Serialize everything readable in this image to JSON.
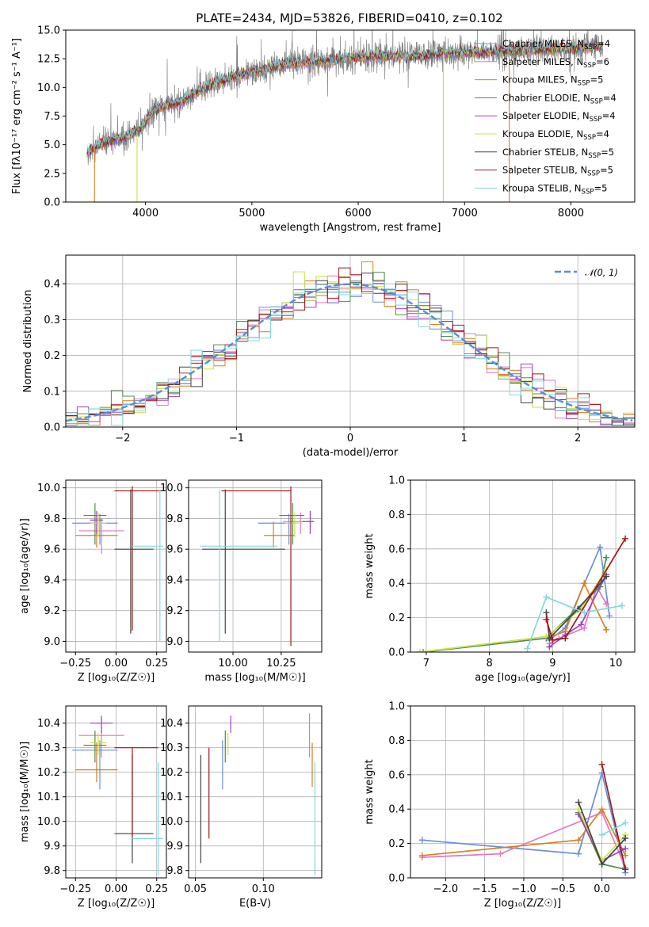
{
  "title": "PLATE=2434, MJD=53826, FIBERID=0410, z=0.102",
  "models": [
    {
      "name": "Chabrier MILES, N_SSP=4",
      "label": "Chabrier MILES, N",
      "sub": "SSP",
      "tail": "=4",
      "color": "#6a8fd8"
    },
    {
      "name": "Salpeter MILES, N_SSP=6",
      "label": "Salpeter MILES, N",
      "sub": "SSP",
      "tail": "=6",
      "color": "#e377c2"
    },
    {
      "name": "Kroupa MILES, N_SSP=5",
      "label": "Kroupa MILES, N",
      "sub": "SSP",
      "tail": "=5",
      "color": "#d97f1e"
    },
    {
      "name": "Chabrier ELODIE, N_SSP=4",
      "label": "Chabrier ELODIE, N",
      "sub": "SSP",
      "tail": "=4",
      "color": "#4e8a4e"
    },
    {
      "name": "Salpeter ELODIE, N_SSP=4",
      "label": "Salpeter ELODIE, N",
      "sub": "SSP",
      "tail": "=4",
      "color": "#a040c0"
    },
    {
      "name": "Kroupa ELODIE, N_SSP=4",
      "label": "Kroupa ELODIE, N",
      "sub": "SSP",
      "tail": "=4",
      "color": "#cde04a"
    },
    {
      "name": "Chabrier STELIB, N_SSP=5",
      "label": "Chabrier STELIB, N",
      "sub": "SSP",
      "tail": "=5",
      "color": "#444444"
    },
    {
      "name": "Salpeter STELIB, N_SSP=5",
      "label": "Salpeter STELIB, N",
      "sub": "SSP",
      "tail": "=5",
      "color": "#a01818"
    },
    {
      "name": "Kroupa STELIB, N_SSP=5",
      "label": "Kroupa STELIB, N",
      "sub": "SSP",
      "tail": "=5",
      "color": "#80dada"
    }
  ],
  "chart_data": [
    {
      "id": "spectrum",
      "type": "line",
      "xlabel": "wavelength [Angstrom, rest frame]",
      "ylabel": "Flux [fλ10⁻¹⁷ erg cm⁻² s⁻¹ A⁻¹]",
      "xlim": [
        3250,
        8600
      ],
      "ylim": [
        0,
        15
      ],
      "xticks": [
        4000,
        5000,
        6000,
        7000,
        8000
      ],
      "yticks": [
        0.0,
        2.5,
        5.0,
        7.5,
        10.0,
        12.5,
        15.0
      ],
      "ytick_labels": [
        "0.0",
        "2.5",
        "5.0",
        "7.5",
        "10.0",
        "12.5",
        "15.0"
      ],
      "observed_color": "#808080",
      "spectrum_trend": [
        [
          3450,
          4.3
        ],
        [
          3600,
          5.2
        ],
        [
          3800,
          5.6
        ],
        [
          3950,
          6.4
        ],
        [
          4100,
          8.2
        ],
        [
          4300,
          8.6
        ],
        [
          4500,
          9.7
        ],
        [
          4700,
          10.5
        ],
        [
          4900,
          11.1
        ],
        [
          5100,
          11.5
        ],
        [
          5300,
          12.0
        ],
        [
          5500,
          12.2
        ],
        [
          5700,
          12.3
        ],
        [
          5900,
          12.6
        ],
        [
          6100,
          12.7
        ],
        [
          6300,
          12.7
        ],
        [
          6500,
          12.7
        ],
        [
          6700,
          12.9
        ],
        [
          6900,
          13.0
        ],
        [
          7100,
          13.1
        ],
        [
          7300,
          13.1
        ],
        [
          7500,
          13.2
        ],
        [
          7700,
          13.3
        ],
        [
          7900,
          13.4
        ],
        [
          8100,
          13.4
        ],
        [
          8300,
          13.6
        ]
      ],
      "grid": false,
      "legend_position": "top-right"
    },
    {
      "id": "residual-hist",
      "type": "histogram",
      "xlabel": "(data-model)/error",
      "ylabel": "Normed distribution",
      "xlim": [
        -2.5,
        2.5
      ],
      "ylim": [
        0,
        0.48
      ],
      "xticks": [
        -2,
        -1,
        0,
        1,
        2
      ],
      "xtick_labels": [
        "−2",
        "−1",
        "0",
        "1",
        "2"
      ],
      "yticks": [
        0.0,
        0.1,
        0.2,
        0.3,
        0.4
      ],
      "ytick_labels": [
        "0.0",
        "0.1",
        "0.2",
        "0.3",
        "0.4"
      ],
      "bin_edges_start": -2.5,
      "bin_width": 0.1,
      "reference": {
        "label": "𝒩(0, 1)",
        "mean": 0,
        "sigma": 1,
        "color": "#5b8ad6"
      },
      "grid": true,
      "legend_position": "top-right"
    },
    {
      "id": "age-vs-Z",
      "type": "errorbar",
      "xlabel": "Z [log₁₀(Z/Z☉)]",
      "ylabel": "age  [log₁₀(age/yr)]",
      "xlim": [
        -0.31,
        0.31
      ],
      "ylim": [
        8.93,
        10.05
      ],
      "xticks": [
        -0.25,
        0.0,
        0.25
      ],
      "xtick_labels": [
        "−0.25",
        "0.00",
        "0.25"
      ],
      "yticks": [
        9.0,
        9.2,
        9.4,
        9.6,
        9.8,
        10.0
      ],
      "ytick_labels": [
        "9.0",
        "9.2",
        "9.4",
        "9.6",
        "9.8",
        "10.0"
      ],
      "points": [
        {
          "m": 0,
          "x": -0.1,
          "y": 9.77,
          "xl": -0.27,
          "xh": 0.01,
          "yl": 9.63,
          "yh": 9.83
        },
        {
          "m": 1,
          "x": -0.09,
          "y": 9.72,
          "xl": -0.23,
          "xh": 0.05,
          "yl": 9.57,
          "yh": 9.8
        },
        {
          "m": 2,
          "x": -0.12,
          "y": 9.69,
          "xl": -0.25,
          "xh": 0.01,
          "yl": 9.61,
          "yh": 9.78
        },
        {
          "m": 3,
          "x": -0.13,
          "y": 9.82,
          "xl": -0.2,
          "xh": -0.06,
          "yl": 9.63,
          "yh": 9.9
        },
        {
          "m": 4,
          "x": -0.12,
          "y": 9.79,
          "xl": -0.16,
          "xh": -0.08,
          "yl": 9.7,
          "yh": 9.85
        },
        {
          "m": 5,
          "x": -0.11,
          "y": 9.77,
          "xl": -0.16,
          "xh": -0.06,
          "yl": 9.68,
          "yh": 9.84
        },
        {
          "m": 6,
          "x": 0.09,
          "y": 9.6,
          "xl": -0.01,
          "xh": 0.23,
          "yl": 9.05,
          "yh": 9.99
        },
        {
          "m": 7,
          "x": 0.1,
          "y": 9.98,
          "xl": -0.01,
          "xh": 0.28,
          "yl": 9.07,
          "yh": 10.01
        },
        {
          "m": 8,
          "x": 0.27,
          "y": 9.62,
          "xl": 0.1,
          "xh": 0.29,
          "yl": 9.0,
          "yh": 9.99
        }
      ],
      "grid": true
    },
    {
      "id": "age-vs-mass",
      "type": "errorbar",
      "xlabel": "mass [log₁₀(M/M☉)]",
      "ylabel": "",
      "xlim": [
        9.77,
        10.46
      ],
      "ylim": [
        8.93,
        10.05
      ],
      "xticks": [
        10.0,
        10.25
      ],
      "xtick_labels": [
        "10.00",
        "10.25"
      ],
      "yticks": [
        9.0,
        9.2,
        9.4,
        9.6,
        9.8,
        10.0
      ],
      "ytick_labels": [
        "9.0",
        "9.2",
        "9.4",
        "9.6",
        "9.8",
        "10.0"
      ],
      "points": [
        {
          "m": 0,
          "x": 10.29,
          "y": 9.77,
          "xl": 10.13,
          "xh": 10.33,
          "yl": 9.63,
          "yh": 9.83
        },
        {
          "m": 1,
          "x": 10.35,
          "y": 9.78,
          "xl": 10.26,
          "xh": 10.42,
          "yl": 9.7,
          "yh": 9.84
        },
        {
          "m": 2,
          "x": 10.21,
          "y": 9.69,
          "xl": 10.16,
          "xh": 10.32,
          "yl": 9.61,
          "yh": 9.78
        },
        {
          "m": 3,
          "x": 10.31,
          "y": 9.82,
          "xl": 10.24,
          "xh": 10.37,
          "yl": 9.63,
          "yh": 9.9
        },
        {
          "m": 4,
          "x": 10.4,
          "y": 9.78,
          "xl": 10.36,
          "xh": 10.42,
          "yl": 9.7,
          "yh": 9.85
        },
        {
          "m": 5,
          "x": 10.32,
          "y": 9.77,
          "xl": 10.27,
          "xh": 10.36,
          "yl": 9.68,
          "yh": 9.84
        },
        {
          "m": 6,
          "x": 9.96,
          "y": 9.6,
          "xl": 9.84,
          "xh": 10.27,
          "yl": 9.05,
          "yh": 9.99
        },
        {
          "m": 7,
          "x": 10.3,
          "y": 9.98,
          "xl": 9.94,
          "xh": 10.3,
          "yl": 8.97,
          "yh": 10.01
        },
        {
          "m": 8,
          "x": 9.93,
          "y": 9.62,
          "xl": 9.83,
          "xh": 10.23,
          "yl": 9.0,
          "yh": 9.99
        }
      ],
      "grid": true
    },
    {
      "id": "weight-vs-age",
      "type": "line",
      "xlabel": "age  [log₁₀(age/yr)]",
      "ylabel": "mass weight",
      "xlim": [
        6.75,
        10.3
      ],
      "ylim": [
        0,
        1.0
      ],
      "xticks": [
        7,
        8,
        9,
        10
      ],
      "xtick_labels": [
        "7",
        "8",
        "9",
        "10"
      ],
      "yticks": [
        0.0,
        0.2,
        0.4,
        0.6,
        0.8,
        1.0
      ],
      "ytick_labels": [
        "0.0",
        "0.2",
        "0.4",
        "0.6",
        "0.8",
        "1.0"
      ],
      "series": [
        {
          "m": 0,
          "x": [
            8.95,
            9.2,
            9.75,
            9.9
          ],
          "y": [
            0.07,
            0.14,
            0.61,
            0.21
          ]
        },
        {
          "m": 1,
          "x": [
            8.95,
            9.1,
            9.5,
            9.7,
            9.85
          ],
          "y": [
            0.05,
            0.08,
            0.14,
            0.38,
            0.28
          ]
        },
        {
          "m": 2,
          "x": [
            8.9,
            9.2,
            9.5,
            9.85
          ],
          "y": [
            0.08,
            0.12,
            0.4,
            0.13
          ]
        },
        {
          "m": 3,
          "x": [
            6.95,
            8.9,
            9.75,
            9.85
          ],
          "y": [
            0.0,
            0.08,
            0.38,
            0.55
          ]
        },
        {
          "m": 4,
          "x": [
            8.95,
            9.2,
            9.45,
            9.85
          ],
          "y": [
            0.03,
            0.1,
            0.16,
            0.45
          ]
        },
        {
          "m": 5,
          "x": [
            6.9,
            8.9,
            9.45,
            9.85
          ],
          "y": [
            0.0,
            0.09,
            0.25,
            0.48
          ]
        },
        {
          "m": 6,
          "x": [
            8.9,
            8.95,
            9.4,
            9.85
          ],
          "y": [
            0.23,
            0.08,
            0.25,
            0.44
          ]
        },
        {
          "m": 7,
          "x": [
            8.9,
            9.0,
            9.2,
            10.15
          ],
          "y": [
            0.19,
            0.07,
            0.08,
            0.66
          ]
        },
        {
          "m": 8,
          "x": [
            8.6,
            8.9,
            9.5,
            10.1
          ],
          "y": [
            0.02,
            0.32,
            0.23,
            0.27
          ]
        }
      ],
      "grid": true
    },
    {
      "id": "mass-vs-Z",
      "type": "errorbar",
      "xlabel": "Z [log₁₀(Z/Z☉)]",
      "ylabel": "mass [log₁₀(M/M☉)]",
      "xlim": [
        -0.31,
        0.31
      ],
      "ylim": [
        9.77,
        10.47
      ],
      "xticks": [
        -0.25,
        0.0,
        0.25
      ],
      "xtick_labels": [
        "−0.25",
        "0.00",
        "0.25"
      ],
      "yticks": [
        9.8,
        9.9,
        10.0,
        10.1,
        10.2,
        10.3,
        10.4
      ],
      "ytick_labels": [
        "9.8",
        "9.9",
        "10.0",
        "10.1",
        "10.2",
        "10.3",
        "10.4"
      ],
      "points": [
        {
          "m": 0,
          "x": -0.1,
          "y": 10.29,
          "xl": -0.27,
          "xh": 0.01,
          "yl": 10.13,
          "yh": 10.33
        },
        {
          "m": 1,
          "x": -0.09,
          "y": 10.35,
          "xl": -0.23,
          "xh": 0.05,
          "yl": 10.26,
          "yh": 10.42
        },
        {
          "m": 2,
          "x": -0.12,
          "y": 10.21,
          "xl": -0.25,
          "xh": 0.01,
          "yl": 10.16,
          "yh": 10.32
        },
        {
          "m": 3,
          "x": -0.13,
          "y": 10.31,
          "xl": -0.2,
          "xh": -0.06,
          "yl": 10.24,
          "yh": 10.37
        },
        {
          "m": 4,
          "x": -0.09,
          "y": 10.4,
          "xl": -0.16,
          "xh": -0.02,
          "yl": 10.36,
          "yh": 10.43
        },
        {
          "m": 5,
          "x": -0.11,
          "y": 10.32,
          "xl": -0.16,
          "xh": -0.06,
          "yl": 10.27,
          "yh": 10.36
        },
        {
          "m": 6,
          "x": 0.1,
          "y": 9.95,
          "xl": -0.01,
          "xh": 0.23,
          "yl": 9.83,
          "yh": 10.27
        },
        {
          "m": 7,
          "x": 0.1,
          "y": 10.3,
          "xl": -0.01,
          "xh": 0.26,
          "yl": 9.94,
          "yh": 10.3
        },
        {
          "m": 8,
          "x": 0.26,
          "y": 9.93,
          "xl": 0.1,
          "xh": 0.29,
          "yl": 9.78,
          "yh": 10.24
        }
      ],
      "grid": true
    },
    {
      "id": "mass-vs-ebv",
      "type": "errorbar",
      "xlabel": "E(B-V)",
      "ylabel": "",
      "xlim": [
        0.045,
        0.143
      ],
      "ylim": [
        9.77,
        10.47
      ],
      "xticks": [
        0.05,
        0.1
      ],
      "xtick_labels": [
        "0.05",
        "0.10"
      ],
      "yticks": [
        9.8,
        9.9,
        10.0,
        10.1,
        10.2,
        10.3,
        10.4
      ],
      "ytick_labels": [
        "9.8",
        "9.9",
        "10.0",
        "10.1",
        "10.2",
        "10.3",
        "10.4"
      ],
      "points": [
        {
          "m": 0,
          "x": 0.07,
          "y": 10.29,
          "yl": 10.13,
          "yh": 10.33
        },
        {
          "m": 1,
          "x": 0.134,
          "y": 10.35,
          "yl": 10.26,
          "yh": 10.44
        },
        {
          "m": 2,
          "x": 0.136,
          "y": 10.21,
          "yl": 10.14,
          "yh": 10.32
        },
        {
          "m": 3,
          "x": 0.072,
          "y": 10.31,
          "yl": 10.24,
          "yh": 10.37
        },
        {
          "m": 4,
          "x": 0.076,
          "y": 10.4,
          "yl": 10.36,
          "yh": 10.43
        },
        {
          "m": 5,
          "x": 0.074,
          "y": 10.32,
          "yl": 10.27,
          "yh": 10.36
        },
        {
          "m": 6,
          "x": 0.054,
          "y": 9.95,
          "yl": 9.83,
          "yh": 10.27
        },
        {
          "m": 7,
          "x": 0.06,
          "y": 10.3,
          "yl": 9.93,
          "yh": 10.3
        },
        {
          "m": 8,
          "x": 0.138,
          "y": 9.93,
          "yl": 9.78,
          "yh": 10.24
        }
      ],
      "grid": true
    },
    {
      "id": "weight-vs-Z",
      "type": "line",
      "xlabel": "Z [log₁₀(Z/Z☉)]",
      "ylabel": "mass weight",
      "xlim": [
        -2.45,
        0.42
      ],
      "ylim": [
        0,
        1.0
      ],
      "xticks": [
        -2.0,
        -1.5,
        -1.0,
        -0.5,
        0.0
      ],
      "xtick_labels": [
        "−2.0",
        "−1.5",
        "−1.0",
        "−0.5",
        "0.0"
      ],
      "yticks": [
        0.0,
        0.2,
        0.4,
        0.6,
        0.8,
        1.0
      ],
      "ytick_labels": [
        "0.0",
        "0.2",
        "0.4",
        "0.6",
        "0.8",
        "1.0"
      ],
      "series": [
        {
          "m": 0,
          "x": [
            -2.3,
            -0.3,
            0.0,
            0.3
          ],
          "y": [
            0.22,
            0.14,
            0.61,
            0.03
          ]
        },
        {
          "m": 1,
          "x": [
            -2.3,
            -1.3,
            0.0,
            0.3
          ],
          "y": [
            0.12,
            0.14,
            0.38,
            0.06
          ]
        },
        {
          "m": 2,
          "x": [
            -2.3,
            -0.3,
            0.0,
            0.3
          ],
          "y": [
            0.13,
            0.22,
            0.4,
            0.13
          ]
        },
        {
          "m": 3,
          "x": [
            -0.3,
            0.0,
            0.3
          ],
          "y": [
            0.38,
            0.08,
            0.05
          ]
        },
        {
          "m": 4,
          "x": [
            -0.3,
            0.0,
            0.3
          ],
          "y": [
            0.37,
            0.1,
            0.17
          ]
        },
        {
          "m": 5,
          "x": [
            -0.3,
            0.0,
            0.3
          ],
          "y": [
            0.4,
            0.1,
            0.25
          ]
        },
        {
          "m": 6,
          "x": [
            -0.3,
            0.0,
            0.3
          ],
          "y": [
            0.44,
            0.08,
            0.23
          ]
        },
        {
          "m": 7,
          "x": [
            0.0,
            0.3
          ],
          "y": [
            0.66,
            0.05
          ]
        },
        {
          "m": 8,
          "x": [
            0.0,
            0.3
          ],
          "y": [
            0.25,
            0.32
          ]
        }
      ],
      "grid": true
    }
  ]
}
